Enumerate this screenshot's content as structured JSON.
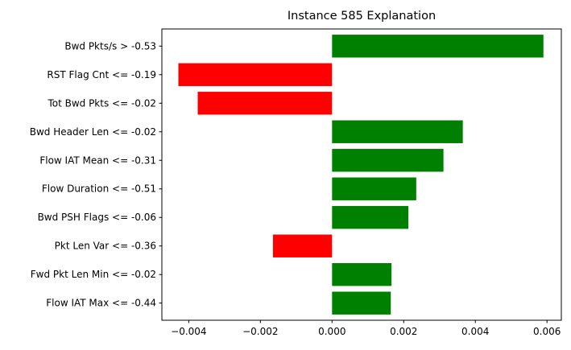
{
  "chart_data": {
    "type": "bar",
    "orientation": "horizontal",
    "title": "Instance 585 Explanation",
    "xlabel": "",
    "ylabel": "",
    "categories": [
      "Bwd Pkts/s > -0.53",
      "RST Flag Cnt <= -0.19",
      "Tot Bwd Pkts <= -0.02",
      "Bwd Header Len <= -0.02",
      "Flow IAT Mean <= -0.31",
      "Flow Duration <= -0.51",
      "Bwd PSH Flags <= -0.06",
      "Pkt Len Var <= -0.36",
      "Fwd Pkt Len Min <= -0.02",
      "Flow IAT Max <= -0.44"
    ],
    "values": [
      0.0059,
      -0.00429,
      -0.00375,
      0.00365,
      0.00311,
      0.00235,
      0.00213,
      -0.00165,
      0.00166,
      0.00164
    ],
    "xlim": [
      -0.00475,
      0.0064
    ],
    "xticks": [
      -0.004,
      -0.002,
      0.0,
      0.002,
      0.004,
      0.006
    ],
    "xtick_labels": [
      "−0.004",
      "−0.002",
      "0.000",
      "0.002",
      "0.004",
      "0.006"
    ],
    "colors": {
      "positive": "#008000",
      "negative": "#ff0000"
    },
    "grid": false,
    "legend": "none"
  }
}
